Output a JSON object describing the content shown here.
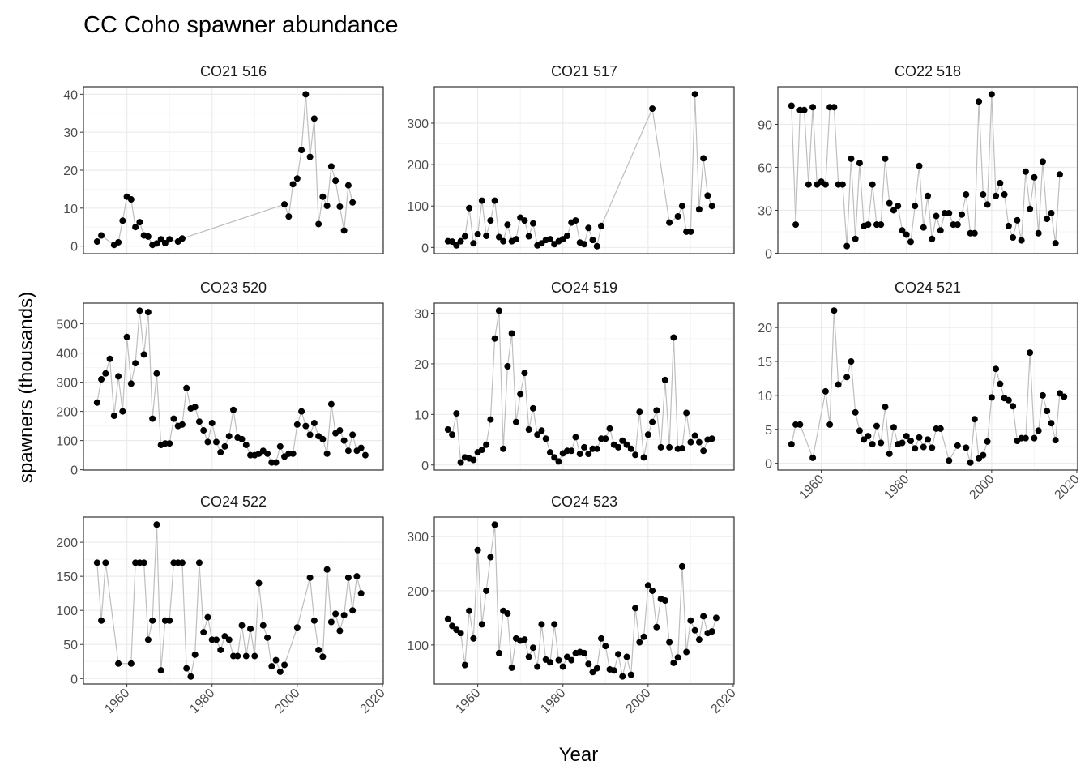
{
  "chart_data": {
    "type": "line",
    "title": "CC Coho spawner abundance",
    "x_label": "Year",
    "y_label": "spawners (thousands)",
    "xlim": [
      1949.8,
      2020.2
    ],
    "xticks": [
      1960,
      1980,
      2000,
      2020
    ],
    "grid": true,
    "line_color": "#bebebe",
    "point_color": "#000000",
    "panels": [
      {
        "title": "CO21 516",
        "x": [
          1953,
          1954,
          1957,
          1958,
          1959,
          1960,
          1961,
          1962,
          1963,
          1964,
          1965,
          1966,
          1967,
          1968,
          1969,
          1970,
          1972,
          1973,
          1997,
          1998,
          1999,
          2000,
          2001,
          2002,
          2003,
          2004,
          2005,
          2006,
          2007,
          2008,
          2009,
          2010,
          2011,
          2012,
          2013
        ],
        "values": [
          1.2,
          2.8,
          0.3,
          1,
          6.7,
          13,
          12.3,
          5,
          6.3,
          2.8,
          2.5,
          0.3,
          0.7,
          1.8,
          0.8,
          1.8,
          1.2,
          2.0,
          11,
          7.8,
          16.3,
          17.8,
          25.3,
          40,
          23.5,
          33.6,
          5.8,
          13,
          10.6,
          21,
          17.2,
          10.4,
          4.1,
          16,
          11.5
        ],
        "ylim": [
          -2,
          42
        ],
        "yticks": [
          0,
          10,
          20,
          30,
          40
        ]
      },
      {
        "title": "CO21 517",
        "x": [
          1953,
          1954,
          1955,
          1956,
          1957,
          1958,
          1959,
          1960,
          1961,
          1962,
          1963,
          1964,
          1965,
          1966,
          1967,
          1968,
          1969,
          1970,
          1971,
          1972,
          1973,
          1974,
          1975,
          1976,
          1977,
          1978,
          1979,
          1980,
          1981,
          1982,
          1983,
          1984,
          1985,
          1986,
          1987,
          1988,
          1989,
          2001,
          2005,
          2007,
          2008,
          2009,
          2010,
          2011,
          2012,
          2013,
          2014,
          2015
        ],
        "values": [
          15,
          14,
          5,
          15,
          27,
          95,
          10,
          32,
          113,
          28,
          65,
          113,
          25,
          15,
          55,
          15,
          20,
          72,
          65,
          27,
          58,
          5,
          10,
          18,
          20,
          8,
          15,
          20,
          28,
          60,
          65,
          12,
          8,
          47,
          18,
          3,
          52,
          335,
          60,
          75,
          100,
          38,
          38,
          370,
          92,
          215,
          125,
          100
        ],
        "ylim": [
          -15,
          388
        ],
        "yticks": [
          0,
          100,
          200,
          300
        ]
      },
      {
        "title": "CO22 518",
        "x": [
          1953,
          1954,
          1955,
          1956,
          1957,
          1958,
          1959,
          1960,
          1961,
          1962,
          1963,
          1964,
          1965,
          1966,
          1967,
          1968,
          1969,
          1970,
          1971,
          1972,
          1973,
          1974,
          1975,
          1976,
          1977,
          1978,
          1979,
          1980,
          1981,
          1982,
          1983,
          1984,
          1985,
          1986,
          1987,
          1988,
          1989,
          1990,
          1991,
          1992,
          1993,
          1994,
          1995,
          1996,
          1997,
          1998,
          1999,
          2000,
          2001,
          2002,
          2003,
          2004,
          2005,
          2006,
          2007,
          2008,
          2009,
          2010,
          2011,
          2012,
          2013,
          2014,
          2015,
          2016
        ],
        "values": [
          103,
          20,
          100,
          100,
          48,
          102,
          48,
          50,
          48,
          102,
          102,
          48,
          48,
          5,
          66,
          10,
          63,
          19,
          20,
          48,
          20,
          20,
          66,
          35,
          30,
          33,
          16,
          13,
          8,
          33,
          61,
          18,
          40,
          10,
          26,
          16,
          28,
          28,
          20,
          20,
          27,
          41,
          14,
          14,
          106,
          41,
          34,
          111,
          40,
          49,
          41,
          19,
          11,
          23,
          9,
          57,
          31,
          53,
          14,
          64,
          24,
          28,
          7,
          55
        ],
        "ylim": [
          -0.3,
          116.3
        ],
        "yticks": [
          0,
          30,
          60,
          90
        ]
      },
      {
        "title": "CO23 520",
        "x": [
          1953,
          1954,
          1955,
          1956,
          1957,
          1958,
          1959,
          1960,
          1961,
          1962,
          1963,
          1964,
          1965,
          1966,
          1967,
          1968,
          1969,
          1970,
          1971,
          1972,
          1973,
          1974,
          1975,
          1976,
          1977,
          1978,
          1979,
          1980,
          1981,
          1982,
          1983,
          1984,
          1985,
          1986,
          1987,
          1988,
          1989,
          1990,
          1991,
          1992,
          1993,
          1994,
          1995,
          1996,
          1997,
          1998,
          1999,
          2000,
          2001,
          2002,
          2003,
          2004,
          2005,
          2006,
          2007,
          2008,
          2009,
          2010,
          2011,
          2012,
          2013,
          2014,
          2015,
          2016
        ],
        "values": [
          230,
          310,
          330,
          380,
          185,
          320,
          200,
          455,
          295,
          365,
          545,
          395,
          540,
          175,
          330,
          85,
          90,
          90,
          175,
          150,
          155,
          280,
          210,
          215,
          165,
          135,
          95,
          160,
          95,
          60,
          80,
          115,
          205,
          110,
          105,
          85,
          50,
          50,
          55,
          65,
          55,
          25,
          25,
          80,
          45,
          55,
          55,
          155,
          200,
          150,
          120,
          160,
          115,
          105,
          55,
          225,
          125,
          135,
          100,
          65,
          120,
          65,
          75,
          50
        ],
        "ylim": [
          -1,
          571
        ],
        "yticks": [
          0,
          100,
          200,
          300,
          400,
          500
        ]
      },
      {
        "title": "CO24 519",
        "x": [
          1953,
          1954,
          1955,
          1956,
          1957,
          1958,
          1959,
          1960,
          1961,
          1962,
          1963,
          1964,
          1965,
          1966,
          1967,
          1968,
          1969,
          1970,
          1971,
          1972,
          1973,
          1974,
          1975,
          1976,
          1977,
          1978,
          1979,
          1980,
          1981,
          1982,
          1983,
          1984,
          1985,
          1986,
          1987,
          1988,
          1989,
          1990,
          1991,
          1992,
          1993,
          1994,
          1995,
          1996,
          1997,
          1998,
          1999,
          2000,
          2001,
          2002,
          2003,
          2004,
          2005,
          2006,
          2007,
          2008,
          2009,
          2010,
          2011,
          2012,
          2013,
          2014,
          2015
        ],
        "values": [
          7,
          6,
          10.2,
          0.5,
          1.5,
          1.3,
          1,
          2.5,
          3,
          4,
          9,
          25,
          30.5,
          3.2,
          19.5,
          26,
          8.5,
          14,
          18.2,
          7,
          11.2,
          6,
          6.8,
          5.2,
          2.5,
          1.5,
          0.7,
          2.3,
          2.8,
          2.8,
          5.5,
          2.2,
          3.5,
          2.2,
          3.2,
          3.2,
          5.2,
          5.2,
          7.2,
          4,
          3.5,
          4.8,
          4,
          3.2,
          2,
          10.5,
          1.5,
          6,
          8.5,
          10.8,
          3.5,
          16.8,
          3.5,
          25.2,
          3.2,
          3.3,
          10.3,
          4.5,
          5.8,
          4.5,
          2.8,
          5,
          5.2
        ],
        "ylim": [
          -1,
          32
        ],
        "yticks": [
          0,
          10,
          20,
          30
        ]
      },
      {
        "title": "CO24 521",
        "x": [
          1953,
          1954,
          1955,
          1958,
          1961,
          1962,
          1963,
          1964,
          1966,
          1967,
          1968,
          1969,
          1970,
          1971,
          1972,
          1973,
          1974,
          1975,
          1976,
          1977,
          1978,
          1979,
          1980,
          1981,
          1982,
          1983,
          1984,
          1985,
          1986,
          1987,
          1988,
          1990,
          1992,
          1994,
          1995,
          1996,
          1997,
          1998,
          1999,
          2000,
          2001,
          2002,
          2003,
          2004,
          2005,
          2006,
          2007,
          2008,
          2009,
          2010,
          2011,
          2012,
          2013,
          2014,
          2015,
          2016,
          2017
        ],
        "values": [
          2.8,
          5.7,
          5.7,
          0.8,
          10.6,
          5.7,
          22.5,
          11.6,
          12.7,
          15,
          7.5,
          4.8,
          3.5,
          4,
          2.8,
          5.5,
          3,
          8.3,
          1.4,
          5.3,
          2.8,
          3,
          4,
          3.3,
          2.2,
          3.8,
          2.4,
          3.5,
          2.3,
          5.1,
          5.1,
          0.4,
          2.6,
          2.3,
          0.1,
          6.5,
          0.7,
          1.2,
          3.2,
          9.7,
          13.9,
          11.7,
          9.6,
          9.3,
          8.4,
          3.3,
          3.7,
          3.7,
          16.3,
          3.7,
          4.8,
          10,
          7.7,
          5.9,
          3.4,
          10.3,
          9.8
        ],
        "ylim": [
          -1,
          23.6
        ],
        "yticks": [
          0,
          5,
          10,
          15,
          20
        ]
      },
      {
        "title": "CO24 522",
        "x": [
          1953,
          1954,
          1955,
          1958,
          1961,
          1962,
          1963,
          1964,
          1965,
          1966,
          1967,
          1968,
          1969,
          1970,
          1971,
          1972,
          1973,
          1974,
          1975,
          1976,
          1977,
          1978,
          1979,
          1980,
          1981,
          1982,
          1983,
          1984,
          1985,
          1986,
          1987,
          1988,
          1989,
          1990,
          1991,
          1992,
          1993,
          1994,
          1995,
          1996,
          1997,
          2000,
          2003,
          2004,
          2005,
          2006,
          2007,
          2008,
          2009,
          2010,
          2011,
          2012,
          2013,
          2014,
          2015
        ],
        "values": [
          170,
          85,
          170,
          22,
          22,
          170,
          170,
          170,
          57,
          85,
          226,
          12,
          85,
          85,
          170,
          170,
          170,
          15,
          3,
          35,
          170,
          68,
          90,
          57,
          57,
          42,
          62,
          57,
          33,
          33,
          78,
          33,
          73,
          33,
          140,
          78,
          60,
          18,
          27,
          10,
          20,
          75,
          148,
          85,
          42,
          32,
          160,
          83,
          95,
          70,
          93,
          148,
          100,
          150,
          125
        ],
        "ylim": [
          -8,
          237
        ],
        "yticks": [
          0,
          50,
          100,
          150,
          200
        ]
      },
      {
        "title": "CO24 523",
        "x": [
          1953,
          1954,
          1955,
          1956,
          1957,
          1958,
          1959,
          1960,
          1961,
          1962,
          1963,
          1964,
          1965,
          1966,
          1967,
          1968,
          1969,
          1970,
          1971,
          1972,
          1973,
          1974,
          1975,
          1976,
          1977,
          1978,
          1979,
          1980,
          1981,
          1982,
          1983,
          1984,
          1985,
          1986,
          1987,
          1988,
          1989,
          1990,
          1991,
          1992,
          1993,
          1994,
          1995,
          1996,
          1997,
          1998,
          1999,
          2000,
          2001,
          2002,
          2003,
          2004,
          2005,
          2006,
          2007,
          2008,
          2009,
          2010,
          2011,
          2012,
          2013,
          2014,
          2015,
          2016
        ],
        "values": [
          148,
          135,
          128,
          122,
          63,
          163,
          112,
          275,
          138,
          200,
          262,
          322,
          85,
          163,
          158,
          58,
          112,
          108,
          110,
          78,
          95,
          60,
          138,
          73,
          68,
          138,
          72,
          60,
          78,
          72,
          85,
          87,
          85,
          65,
          50,
          57,
          112,
          98,
          55,
          53,
          83,
          42,
          78,
          45,
          168,
          105,
          115,
          210,
          200,
          133,
          185,
          182,
          105,
          67,
          77,
          245,
          87,
          145,
          127,
          110,
          153,
          122,
          125,
          150
        ],
        "ylim": [
          28,
          336
        ],
        "yticks": [
          100,
          200,
          300
        ]
      }
    ]
  }
}
